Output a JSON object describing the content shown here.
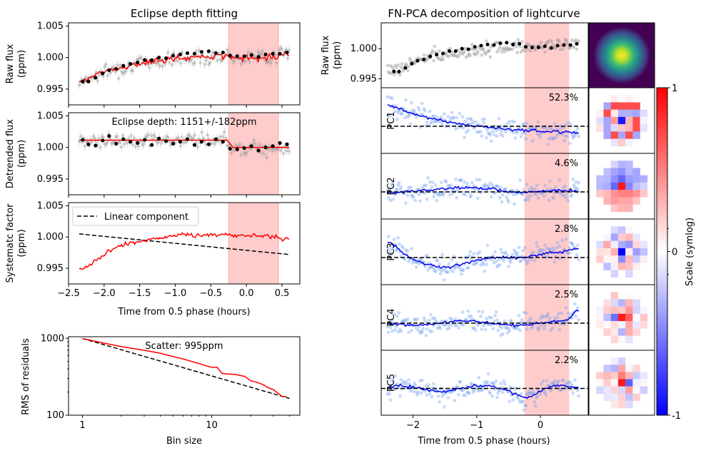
{
  "chart_data": [
    {
      "type": "scatter",
      "id": "raw",
      "title": "Eclipse depth fitting",
      "ylabel": [
        "Raw flux",
        "(ppm)"
      ],
      "ylim": [
        0.9925,
        1.0055
      ],
      "xlim": [
        -2.5,
        0.75
      ],
      "yticks": [
        "1.005",
        "1.000",
        "0.995"
      ],
      "ytick_values": [
        1.005,
        1.0,
        0.995
      ],
      "eclipse": [
        -0.25,
        0.45
      ],
      "binned": [
        [
          -2.3,
          0.9962
        ],
        [
          -2.22,
          0.9962
        ],
        [
          -2.12,
          0.9968
        ],
        [
          -2.02,
          0.9975
        ],
        [
          -1.93,
          0.998
        ],
        [
          -1.83,
          0.9982
        ],
        [
          -1.73,
          0.9987
        ],
        [
          -1.63,
          0.999
        ],
        [
          -1.53,
          0.9992
        ],
        [
          -1.43,
          0.9996
        ],
        [
          -1.33,
          0.9996
        ],
        [
          -1.23,
          1.0
        ],
        [
          -1.13,
          0.9999
        ],
        [
          -1.03,
          1.0003
        ],
        [
          -0.93,
          1.0005
        ],
        [
          -0.83,
          1.0007
        ],
        [
          -0.73,
          1.0006
        ],
        [
          -0.63,
          1.0009
        ],
        [
          -0.53,
          1.001
        ],
        [
          -0.43,
          1.0007
        ],
        [
          -0.33,
          1.0008
        ],
        [
          -0.23,
          1.0003
        ],
        [
          -0.13,
          1.0002
        ],
        [
          -0.03,
          1.0002
        ],
        [
          0.07,
          1.0004
        ],
        [
          0.17,
          1.0001
        ],
        [
          0.27,
          1.0005
        ],
        [
          0.37,
          1.0006
        ],
        [
          0.47,
          1.0006
        ],
        [
          0.57,
          1.0008
        ]
      ]
    },
    {
      "type": "scatter",
      "id": "detrended",
      "ylabel": [
        "Detrended flux",
        "(ppm)"
      ],
      "ylim": [
        0.9925,
        1.0055
      ],
      "xlim": [
        -2.5,
        0.75
      ],
      "yticks": [
        "1.005",
        "1.000",
        "0.995"
      ],
      "ytick_values": [
        1.005,
        1.0,
        0.995
      ],
      "annotation": "Eclipse depth: 1151+/-182ppm",
      "eclipse": [
        -0.25,
        0.45
      ],
      "model": {
        "before": 1.00115,
        "after": 1.0,
        "ingress": -0.25
      },
      "binned": [
        [
          -2.3,
          1.0012
        ],
        [
          -2.22,
          1.0005
        ],
        [
          -2.12,
          1.0003
        ],
        [
          -2.02,
          1.0011
        ],
        [
          -1.93,
          1.0018
        ],
        [
          -1.83,
          1.0006
        ],
        [
          -1.73,
          1.0013
        ],
        [
          -1.63,
          1.0009
        ],
        [
          -1.53,
          1.0007
        ],
        [
          -1.43,
          1.0012
        ],
        [
          -1.33,
          1.0004
        ],
        [
          -1.23,
          1.0014
        ],
        [
          -1.13,
          1.001
        ],
        [
          -1.03,
          1.0006
        ],
        [
          -0.93,
          1.0009
        ],
        [
          -0.83,
          1.0013
        ],
        [
          -0.73,
          1.0004
        ],
        [
          -0.63,
          1.0009
        ],
        [
          -0.53,
          1.0005
        ],
        [
          -0.43,
          1.0013
        ],
        [
          -0.33,
          1.0009
        ],
        [
          -0.23,
          0.9998
        ],
        [
          -0.13,
          0.9997
        ],
        [
          -0.03,
          0.9999
        ],
        [
          0.07,
          1.0002
        ],
        [
          0.17,
          0.9995
        ],
        [
          0.27,
          1.0
        ],
        [
          0.37,
          1.0002
        ],
        [
          0.47,
          1.0007
        ],
        [
          0.57,
          1.0005
        ]
      ]
    },
    {
      "type": "line",
      "id": "systematic",
      "ylabel": [
        "Systematc factor",
        "(ppm)"
      ],
      "xlabel": "Time from 0.5 phase (hours)",
      "ylim": [
        0.9925,
        1.0055
      ],
      "xlim": [
        -2.5,
        0.75
      ],
      "yticks": [
        "1.005",
        "1.000",
        "0.995"
      ],
      "ytick_values": [
        1.005,
        1.0,
        0.995
      ],
      "xticks": [
        "−2.5",
        "−2.0",
        "−1.5",
        "−1.0",
        "−0.5",
        "0.0",
        "0.5"
      ],
      "xtick_values": [
        -2.5,
        -2.0,
        -1.5,
        -1.0,
        -0.5,
        0.0,
        0.5
      ],
      "legend": "Linear component",
      "eclipse": [
        -0.25,
        0.45
      ],
      "linear": [
        [
          -2.35,
          1.0005
        ],
        [
          0.6,
          0.9972
        ]
      ],
      "curve": [
        [
          -2.35,
          0.9947
        ],
        [
          -2.2,
          0.9955
        ],
        [
          -2.05,
          0.9967
        ],
        [
          -1.9,
          0.998
        ],
        [
          -1.75,
          0.9987
        ],
        [
          -1.6,
          0.9991
        ],
        [
          -1.45,
          0.9993
        ],
        [
          -1.3,
          0.9997
        ],
        [
          -1.15,
          0.9999
        ],
        [
          -1.0,
          1.0003
        ],
        [
          -0.85,
          1.0004
        ],
        [
          -0.7,
          1.0002
        ],
        [
          -0.55,
          1.0003
        ],
        [
          -0.4,
          1.0004
        ],
        [
          -0.25,
          1.0003
        ],
        [
          -0.1,
          1.0002
        ],
        [
          0.05,
          1.0002
        ],
        [
          0.2,
          1.0003
        ],
        [
          0.35,
          1.0001
        ],
        [
          0.5,
          0.9998
        ],
        [
          0.6,
          0.9998
        ]
      ]
    },
    {
      "type": "line",
      "id": "rms",
      "ylabel": "RMS of residuals",
      "xlabel": "Bin size",
      "annotation": "Scatter: 995ppm",
      "xlim": [
        0.78,
        48
      ],
      "ylim": [
        100,
        1050
      ],
      "xticks": [
        "1",
        "10"
      ],
      "xtick_values": [
        1,
        10
      ],
      "yticks": [
        "1000",
        "100"
      ],
      "ytick_values": [
        1000,
        100
      ],
      "expected": [
        [
          1,
          995
        ],
        [
          40,
          165
        ]
      ],
      "measured": [
        [
          1,
          995
        ],
        [
          1.5,
          860
        ],
        [
          2,
          780
        ],
        [
          3,
          700
        ],
        [
          4,
          640
        ],
        [
          5,
          580
        ],
        [
          6,
          540
        ],
        [
          7,
          500
        ],
        [
          8,
          470
        ],
        [
          9,
          440
        ],
        [
          10,
          420
        ],
        [
          11,
          420
        ],
        [
          12,
          350
        ],
        [
          13,
          345
        ],
        [
          15,
          340
        ],
        [
          18,
          320
        ],
        [
          20,
          280
        ],
        [
          22,
          270
        ],
        [
          25,
          250
        ],
        [
          27,
          230
        ],
        [
          30,
          215
        ],
        [
          33,
          190
        ],
        [
          35,
          175
        ],
        [
          38,
          175
        ]
      ]
    },
    {
      "type": "scatter",
      "id": "pca",
      "title": "FN-PCA decomposition of lightcurve",
      "xlabel": "Time from 0.5 phase (hours)",
      "xlim": [
        -2.5,
        0.75
      ],
      "xticks": [
        "−2",
        "−1",
        "0"
      ],
      "xtick_values": [
        -2,
        -1,
        0
      ],
      "eclipse": [
        -0.25,
        0.45
      ],
      "raw_panel": {
        "ylabel": [
          "Raw flux",
          "(ppm)"
        ],
        "yticks": [
          "1.000",
          "0.995"
        ],
        "ytick_values": [
          1.0,
          0.995
        ],
        "ylim": [
          0.9935,
          1.0043
        ]
      },
      "components": [
        {
          "name": "PC1",
          "pct": "52.3%"
        },
        {
          "name": "PC2",
          "pct": "4.6%"
        },
        {
          "name": "PC3",
          "pct": "2.8%"
        },
        {
          "name": "PC4",
          "pct": "2.5%"
        },
        {
          "name": "PC5",
          "pct": "2.2%"
        }
      ],
      "colorbar": {
        "label": "Scale (symlog)",
        "ticks": [
          "1",
          "0",
          "-1"
        ],
        "tick_values": [
          1,
          0,
          -1
        ]
      }
    }
  ]
}
